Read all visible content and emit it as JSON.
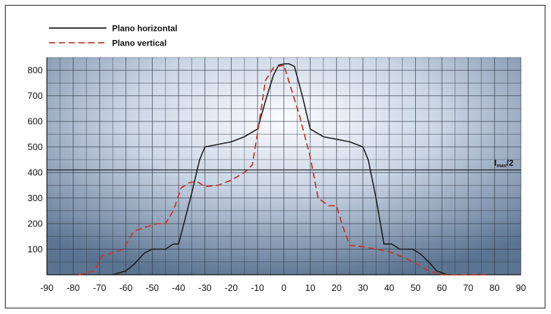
{
  "chart_data": {
    "type": "line",
    "title": "",
    "xlabel": "",
    "ylabel": "",
    "xlim": [
      -90,
      90
    ],
    "ylim": [
      0,
      850
    ],
    "x_ticks": [
      -90,
      -80,
      -70,
      -60,
      -50,
      -40,
      -30,
      -20,
      -10,
      0,
      10,
      20,
      30,
      40,
      50,
      60,
      70,
      80,
      90
    ],
    "y_ticks": [
      100,
      200,
      300,
      400,
      500,
      600,
      700,
      800
    ],
    "grid": true,
    "legend_position": "top-left",
    "annotation": {
      "label": "Imax/2",
      "label_main": "I",
      "label_sub": "max",
      "label_tail": "/2",
      "y": 410
    },
    "series": [
      {
        "name": "Plano horizontal",
        "color": "#1a1a1a",
        "style": "solid",
        "points": [
          [
            -65,
            0
          ],
          [
            -60,
            15
          ],
          [
            -57,
            40
          ],
          [
            -53,
            85
          ],
          [
            -50,
            100
          ],
          [
            -45,
            100
          ],
          [
            -42,
            120
          ],
          [
            -40,
            120
          ],
          [
            -35,
            320
          ],
          [
            -32,
            450
          ],
          [
            -30,
            500
          ],
          [
            -25,
            510
          ],
          [
            -20,
            520
          ],
          [
            -15,
            540
          ],
          [
            -10,
            570
          ],
          [
            -7,
            680
          ],
          [
            -4,
            780
          ],
          [
            -2,
            820
          ],
          [
            0,
            825
          ],
          [
            2,
            825
          ],
          [
            4,
            815
          ],
          [
            7,
            700
          ],
          [
            10,
            570
          ],
          [
            15,
            540
          ],
          [
            20,
            530
          ],
          [
            25,
            520
          ],
          [
            30,
            500
          ],
          [
            32,
            450
          ],
          [
            35,
            300
          ],
          [
            38,
            120
          ],
          [
            41,
            120
          ],
          [
            44,
            100
          ],
          [
            49,
            100
          ],
          [
            52,
            80
          ],
          [
            55,
            50
          ],
          [
            58,
            15
          ],
          [
            62,
            0
          ]
        ]
      },
      {
        "name": "Plano vertical",
        "color": "#c0392b",
        "style": "dashed",
        "points": [
          [
            -78,
            0
          ],
          [
            -72,
            15
          ],
          [
            -69,
            75
          ],
          [
            -67,
            80
          ],
          [
            -64,
            90
          ],
          [
            -61,
            100
          ],
          [
            -57,
            170
          ],
          [
            -53,
            185
          ],
          [
            -48,
            200
          ],
          [
            -45,
            200
          ],
          [
            -42,
            250
          ],
          [
            -39,
            340
          ],
          [
            -36,
            360
          ],
          [
            -33,
            365
          ],
          [
            -30,
            345
          ],
          [
            -25,
            350
          ],
          [
            -20,
            370
          ],
          [
            -15,
            400
          ],
          [
            -12,
            430
          ],
          [
            -10,
            555
          ],
          [
            -7,
            760
          ],
          [
            -4,
            810
          ],
          [
            0,
            820
          ],
          [
            3,
            720
          ],
          [
            6,
            620
          ],
          [
            10,
            460
          ],
          [
            13,
            300
          ],
          [
            17,
            270
          ],
          [
            20,
            270
          ],
          [
            22,
            200
          ],
          [
            25,
            115
          ],
          [
            30,
            110
          ],
          [
            35,
            100
          ],
          [
            40,
            90
          ],
          [
            45,
            70
          ],
          [
            50,
            45
          ],
          [
            55,
            15
          ],
          [
            60,
            0
          ],
          [
            78,
            0
          ]
        ]
      }
    ]
  }
}
